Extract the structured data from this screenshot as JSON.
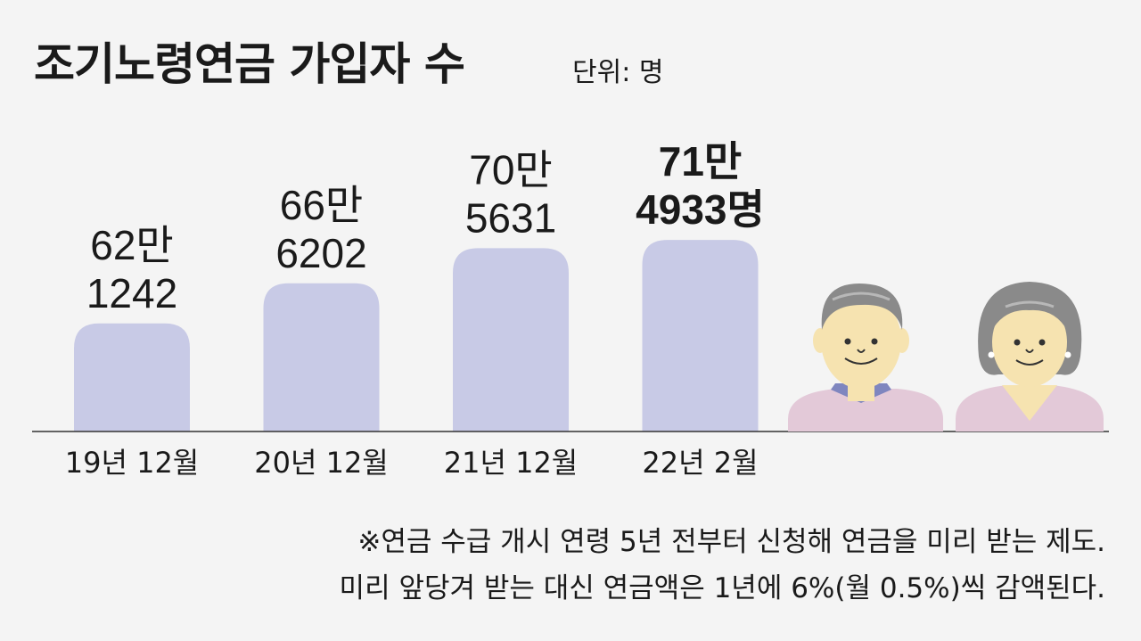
{
  "title": "조기노령연금 가입자 수",
  "unit": "단위: 명",
  "chart_data": {
    "type": "bar",
    "categories": [
      "19년 12월",
      "20년 12월",
      "21년 12월",
      "22년 2월"
    ],
    "values": [
      621242,
      666202,
      705631,
      714933
    ],
    "value_labels": [
      [
        "62만",
        "1242"
      ],
      [
        "66만",
        "6202"
      ],
      [
        "70만",
        "5631"
      ],
      [
        "71만",
        "4933명"
      ]
    ],
    "highlight_index": 3,
    "title": "조기노령연금 가입자 수",
    "ylabel": "",
    "xlabel": "",
    "grid": false,
    "bar_color": "#c8cae6",
    "highlight_color": "#c8cae6"
  },
  "notes": [
    "※연금 수급 개시 연령 5년 전부터 신청해 연금을 미리 받는 제도.",
    "미리 앞당겨 받는 대신 연금액은 1년에 6%(월 0.5%)씩 감액된다."
  ],
  "illustration": {
    "icon": "elderly-couple-icon",
    "skin": "#f6e3b0",
    "hair": "#8a8a8a",
    "shirt": "#e3c9d8",
    "collar": "#7f86bf"
  }
}
